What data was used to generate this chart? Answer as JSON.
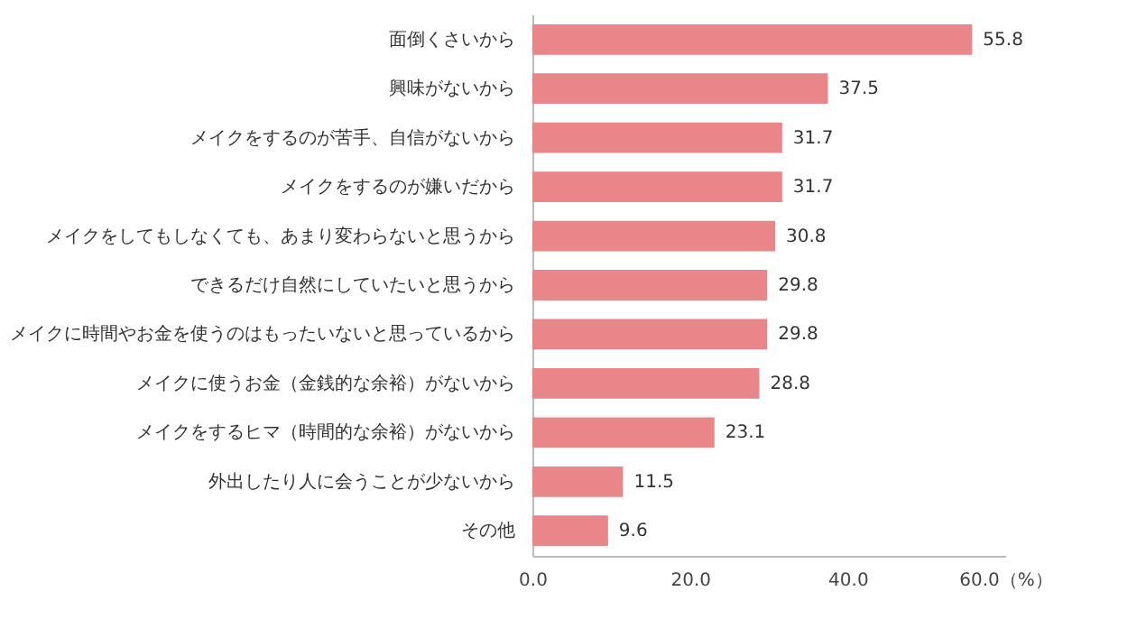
{
  "chart_data": {
    "type": "bar",
    "orientation": "horizontal",
    "categories": [
      "面倒くさいから",
      "興味がないから",
      "メイクをするのが苦手、自信がないから",
      "メイクをするのが嫌いだから",
      "メイクをしてもしなくても、あまり変わらないと思うから",
      "できるだけ自然にしていたいと思うから",
      "メイクに時間やお金を使うのはもったいないと思っているから",
      "メイクに使うお金（金銭的な余裕）がないから",
      "メイクをするヒマ（時間的な余裕）がないから",
      "外出したり人に会うことが少ないから",
      "その他"
    ],
    "values": [
      55.8,
      37.5,
      31.7,
      31.7,
      30.8,
      29.8,
      29.8,
      28.8,
      23.1,
      11.5,
      9.6
    ],
    "color": "#e8868a",
    "xlim": [
      0,
      60
    ],
    "xticks": [
      {
        "value": 0,
        "label": "0.0"
      },
      {
        "value": 20,
        "label": "20.0"
      },
      {
        "value": 40,
        "label": "40.0"
      },
      {
        "value": 60,
        "label": "60.0（%）"
      }
    ],
    "data_labels": true,
    "grid": false
  }
}
